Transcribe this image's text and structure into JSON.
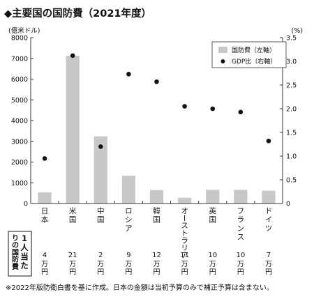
{
  "title": "◆主要国の国防費（2021年度）",
  "note": "※2022年版防衛白書を基に作成。日本の金額は当初予算のみで補正予算は含まない。",
  "per_capita_label": "1人当たりの国防費",
  "chart_data": {
    "type": "bar",
    "title": "◆主要国の国防費（2021年度）",
    "categories": [
      "日本",
      "米国",
      "中国",
      "ロシア",
      "韓国",
      "オーストラリア",
      "英国",
      "フランス",
      "ドイツ"
    ],
    "series": [
      {
        "name": "国防費（左軸）",
        "type": "bar",
        "axis": "left",
        "values": [
          540,
          7130,
          3240,
          1340,
          650,
          280,
          660,
          660,
          620
        ]
      },
      {
        "name": "GDP比（右軸）",
        "type": "scatter",
        "axis": "right",
        "values": [
          0.95,
          3.12,
          1.2,
          2.73,
          2.57,
          2.05,
          2.0,
          1.93,
          1.32
        ]
      }
    ],
    "left_axis": {
      "label": "(億米ドル)",
      "ylim": [
        0,
        8000
      ],
      "ticks": [
        0,
        1000,
        2000,
        3000,
        4000,
        5000,
        6000,
        7000,
        8000
      ]
    },
    "right_axis": {
      "label": "(%)",
      "ylim": [
        0,
        3.5
      ],
      "ticks": [
        "0",
        "0.5",
        "1.0",
        "1.5",
        "2.0",
        "2.5",
        "3.0",
        "3.5"
      ]
    },
    "per_capita": [
      "4万円",
      "21万円",
      "2万円",
      "9万円",
      "12万円",
      "11万円",
      "10万円",
      "10万円",
      "7万円"
    ],
    "legend_position": "top-right",
    "grid": false,
    "colors": {
      "bar": "#c8c8c8",
      "dot": "#111111",
      "axis": "#333333"
    }
  }
}
